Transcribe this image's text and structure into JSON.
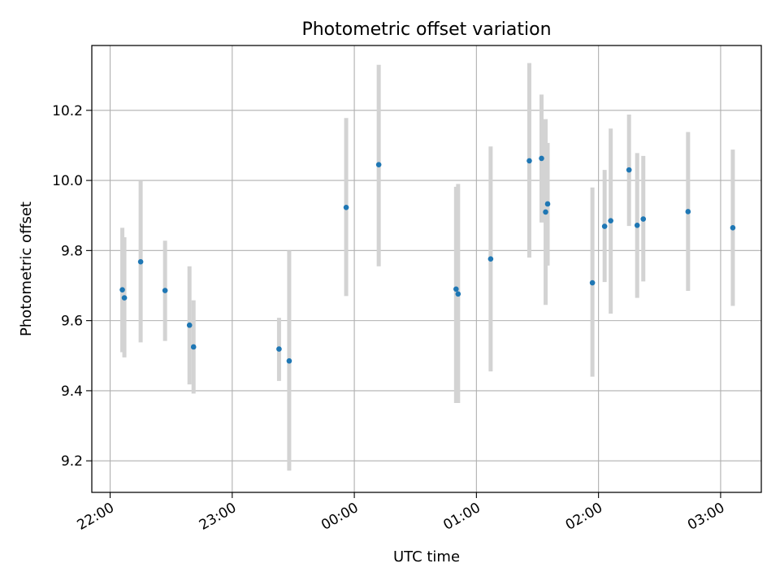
{
  "chart_data": {
    "type": "scatter",
    "title": "Photometric offset variation",
    "xlabel": "UTC time",
    "ylabel": "Photometric offset",
    "x_axis_type": "time",
    "x_range_hours_utc": [
      "21:51",
      "03:20"
    ],
    "ylim": [
      9.11,
      10.385
    ],
    "x_tick_times": [
      "22:00",
      "23:00",
      "00:00",
      "01:00",
      "02:00",
      "03:00"
    ],
    "x_tick_labels": [
      "22:00",
      "23:00",
      "00:00",
      "01:00",
      "02:00",
      "03:00"
    ],
    "y_ticks": [
      9.2,
      9.4,
      9.6,
      9.8,
      10.0,
      10.2
    ],
    "y_tick_labels": [
      "9.2",
      "9.4",
      "9.6",
      "9.8",
      "10.0",
      "10.2"
    ],
    "grid": true,
    "colors": {
      "points": "#1f77b4",
      "error_bars": "#d3d3d3",
      "grid": "#b0b0b0",
      "axes": "#000000"
    },
    "points": [
      {
        "t": "22:06",
        "y": 9.688,
        "ylo": 9.51,
        "yhi": 9.865
      },
      {
        "t": "22:07",
        "y": 9.665,
        "ylo": 9.495,
        "yhi": 9.838
      },
      {
        "t": "22:15",
        "y": 9.768,
        "ylo": 9.538,
        "yhi": 10.0
      },
      {
        "t": "22:27",
        "y": 9.686,
        "ylo": 9.542,
        "yhi": 9.828
      },
      {
        "t": "22:39",
        "y": 9.587,
        "ylo": 9.418,
        "yhi": 9.755
      },
      {
        "t": "22:41",
        "y": 9.525,
        "ylo": 9.392,
        "yhi": 9.658
      },
      {
        "t": "23:23",
        "y": 9.519,
        "ylo": 9.428,
        "yhi": 9.608
      },
      {
        "t": "23:28",
        "y": 9.485,
        "ylo": 9.172,
        "yhi": 9.8
      },
      {
        "t": "23:56",
        "y": 9.923,
        "ylo": 9.67,
        "yhi": 10.178
      },
      {
        "t": "00:12",
        "y": 10.045,
        "ylo": 9.755,
        "yhi": 10.33
      },
      {
        "t": "00:50",
        "y": 9.69,
        "ylo": 9.365,
        "yhi": 9.982
      },
      {
        "t": "00:51",
        "y": 9.676,
        "ylo": 9.365,
        "yhi": 9.99
      },
      {
        "t": "01:07",
        "y": 9.776,
        "ylo": 9.455,
        "yhi": 10.097
      },
      {
        "t": "01:26",
        "y": 10.056,
        "ylo": 9.78,
        "yhi": 10.335
      },
      {
        "t": "01:32",
        "y": 10.063,
        "ylo": 9.88,
        "yhi": 10.245
      },
      {
        "t": "01:34",
        "y": 9.91,
        "ylo": 9.645,
        "yhi": 10.175
      },
      {
        "t": "01:35",
        "y": 9.933,
        "ylo": 9.757,
        "yhi": 10.107
      },
      {
        "t": "01:57",
        "y": 9.708,
        "ylo": 9.44,
        "yhi": 9.98
      },
      {
        "t": "02:03",
        "y": 9.869,
        "ylo": 9.71,
        "yhi": 10.03
      },
      {
        "t": "02:06",
        "y": 9.885,
        "ylo": 9.62,
        "yhi": 10.148
      },
      {
        "t": "02:15",
        "y": 10.03,
        "ylo": 9.87,
        "yhi": 10.188
      },
      {
        "t": "02:19",
        "y": 9.872,
        "ylo": 9.665,
        "yhi": 10.078
      },
      {
        "t": "02:22",
        "y": 9.89,
        "ylo": 9.712,
        "yhi": 10.07
      },
      {
        "t": "02:44",
        "y": 9.911,
        "ylo": 9.685,
        "yhi": 10.138
      },
      {
        "t": "03:06",
        "y": 9.865,
        "ylo": 9.642,
        "yhi": 10.088
      }
    ]
  }
}
